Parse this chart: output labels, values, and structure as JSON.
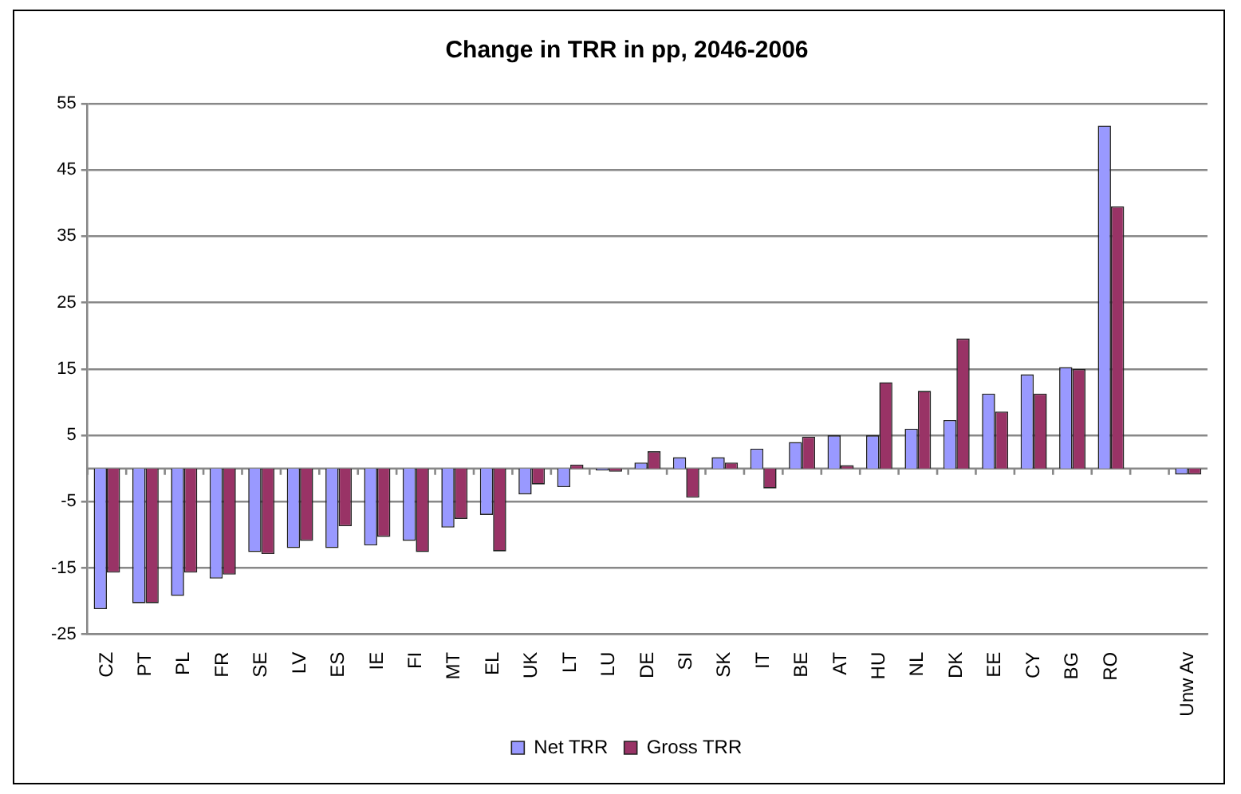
{
  "chart_data": {
    "type": "bar",
    "title": "Change in TRR in pp, 2046-2006",
    "categories": [
      "CZ",
      "PT",
      "PL",
      "FR",
      "SE",
      "LV",
      "ES",
      "IE",
      "FI",
      "MT",
      "EL",
      "UK",
      "LT",
      "LU",
      "DE",
      "SI",
      "SK",
      "IT",
      "BE",
      "AT",
      "HU",
      "NL",
      "DK",
      "EE",
      "CY",
      "BG",
      "RO",
      null,
      "Unw Av"
    ],
    "series": [
      {
        "name": "Net TRR",
        "color": "#9999ff",
        "values": [
          -21.2,
          -20.3,
          -19.2,
          -16.6,
          -12.6,
          -12,
          -12,
          -11.6,
          -10.9,
          -8.9,
          -7,
          -3.9,
          -2.8,
          -0.3,
          0.9,
          1.7,
          1.7,
          3,
          4,
          5,
          5,
          6,
          7.3,
          11.3,
          14.2,
          15.3,
          51.7,
          null,
          -0.9
        ]
      },
      {
        "name": "Gross TRR",
        "color": "#993366",
        "values": [
          -15.7,
          -20.3,
          -15.7,
          -16,
          -12.9,
          -10.9,
          -8.7,
          -10.3,
          -12.6,
          -7.6,
          -12.5,
          -2.4,
          0.6,
          -0.5,
          2.6,
          -4.4,
          0.9,
          -3,
          4.8,
          0.5,
          13,
          11.7,
          19.6,
          8.6,
          11.3,
          15,
          39.5,
          null,
          -0.9
        ]
      }
    ],
    "ylim": [
      -25,
      55
    ],
    "yticks": [
      -25,
      -15,
      -5,
      5,
      15,
      25,
      35,
      45,
      55
    ],
    "grid": "y",
    "legend": "bottom"
  }
}
